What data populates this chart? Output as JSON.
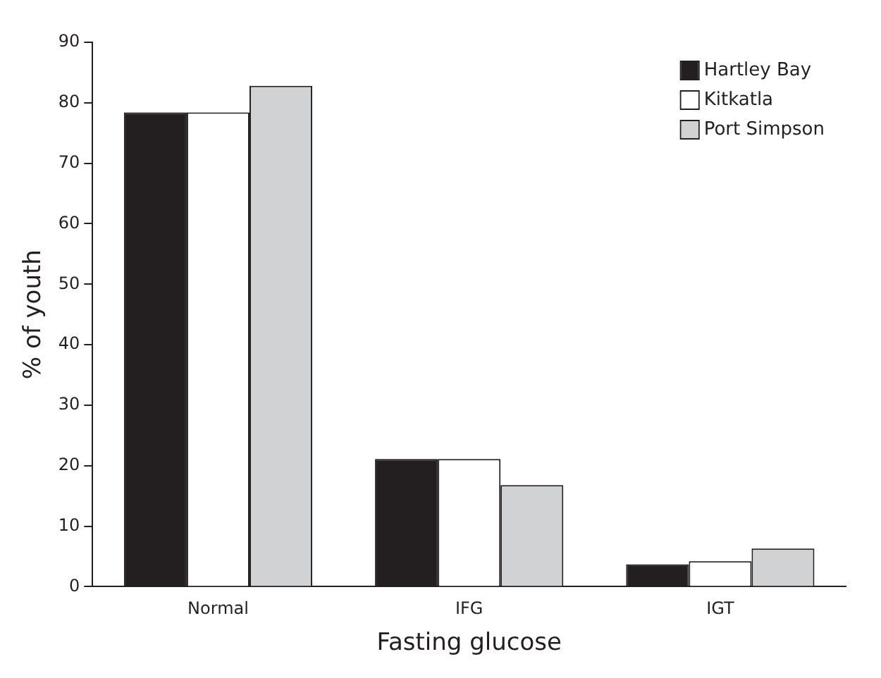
{
  "chart_data": {
    "type": "bar",
    "xlabel": "Fasting glucose",
    "ylabel": "% of youth",
    "categories": [
      "Normal",
      "IFG",
      "IGT"
    ],
    "series": [
      {
        "name": "Hartley Bay",
        "color": "#231f20",
        "values": [
          78.4,
          21.1,
          3.7
        ]
      },
      {
        "name": "Kitkatla",
        "color": "#ffffff",
        "values": [
          78.4,
          21.1,
          4.2
        ]
      },
      {
        "name": "Port Simpson",
        "color": "#d1d2d4",
        "values": [
          82.8,
          16.8,
          6.3
        ]
      }
    ],
    "ylim": [
      0,
      90
    ],
    "yticks": [
      0,
      10,
      20,
      30,
      40,
      50,
      60,
      70,
      80,
      90
    ],
    "grid": false,
    "legend": "top right"
  }
}
